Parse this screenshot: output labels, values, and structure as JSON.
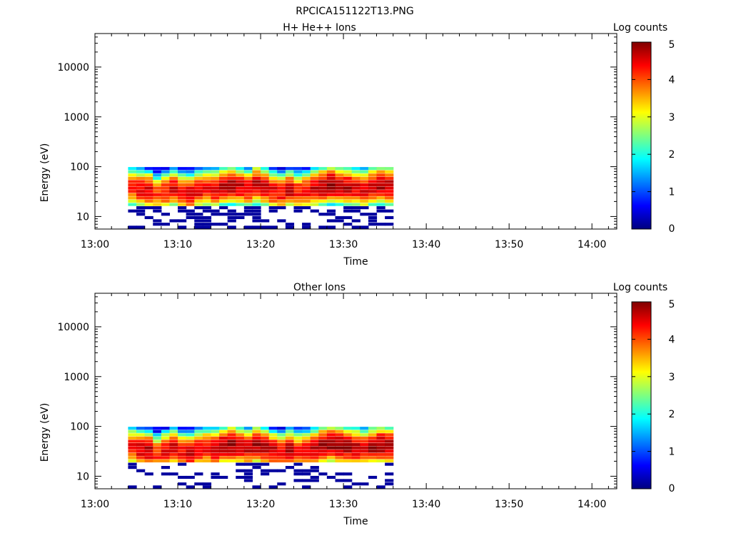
{
  "figure_title": "RPCICA151122T13.PNG",
  "colors": {
    "colormap": [
      "#00007f",
      "#0000ff",
      "#007fff",
      "#00ffff",
      "#7fff7f",
      "#ffff00",
      "#ff7f00",
      "#ff0000",
      "#7f0000"
    ]
  },
  "chart_data": [
    {
      "type": "heatmap",
      "title": "H+ He++ Ions",
      "xlabel": "Time",
      "ylabel": "Energy (eV)",
      "x_range": [
        "13:00",
        "14:03"
      ],
      "x_ticks": [
        "13:00",
        "13:10",
        "13:20",
        "13:30",
        "13:40",
        "13:50",
        "14:00"
      ],
      "y_scale": "log",
      "y_range": [
        5.6,
        47000
      ],
      "y_ticks": [
        "10",
        "100",
        "1000",
        "10000"
      ],
      "colorbar": {
        "label": "Log counts",
        "range": [
          0,
          5
        ],
        "ticks": [
          "0",
          "1",
          "2",
          "3",
          "4",
          "5"
        ]
      },
      "data_time_range": [
        "13:04",
        "13:36"
      ],
      "time_bins": 32,
      "energy_bins": [
        6.1,
        7.0,
        8.2,
        9.5,
        11.1,
        12.9,
        15.0,
        17.4,
        20.3,
        23.6,
        27.4,
        31.9,
        37.1,
        43.1,
        50.2,
        58.4,
        67.9,
        79.0,
        91.8
      ],
      "peak_log_counts_by_time": [
        4.3,
        4.5,
        4.6,
        4.1,
        4.4,
        4.5,
        4.3,
        4.6,
        4.5,
        4.4,
        4.6,
        4.7,
        4.8,
        4.6,
        4.5,
        4.7,
        4.6,
        4.5,
        4.4,
        4.6,
        4.3,
        4.4,
        4.6,
        4.8,
        4.9,
        4.8,
        4.7,
        4.6,
        4.5,
        4.7,
        4.8,
        4.7
      ],
      "peak_energy_ev_by_time": [
        38,
        35,
        33,
        28,
        32,
        36,
        31,
        29,
        34,
        37,
        35,
        40,
        42,
        39,
        36,
        43,
        38,
        33,
        30,
        34,
        31,
        33,
        36,
        40,
        44,
        41,
        39,
        37,
        35,
        39,
        42,
        40
      ]
    },
    {
      "type": "heatmap",
      "title": "Other Ions",
      "xlabel": "Time",
      "ylabel": "Energy (eV)",
      "x_range": [
        "13:00",
        "14:03"
      ],
      "x_ticks": [
        "13:00",
        "13:10",
        "13:20",
        "13:30",
        "13:40",
        "13:50",
        "14:00"
      ],
      "y_scale": "log",
      "y_range": [
        5.6,
        47000
      ],
      "y_ticks": [
        "10",
        "100",
        "1000",
        "10000"
      ],
      "colorbar": {
        "label": "Log counts",
        "range": [
          0,
          5
        ],
        "ticks": [
          "0",
          "1",
          "2",
          "3",
          "4",
          "5"
        ]
      },
      "data_time_range": [
        "13:04",
        "13:36"
      ],
      "time_bins": 32,
      "energy_bins": [
        6.1,
        7.0,
        8.2,
        9.5,
        11.1,
        12.9,
        15.0,
        17.4,
        20.3,
        23.6,
        27.4,
        31.9,
        37.1,
        43.1,
        50.2,
        58.4,
        67.9,
        79.0,
        91.8
      ],
      "peak_log_counts_by_time": [
        4.4,
        4.6,
        4.7,
        4.2,
        4.5,
        4.6,
        4.4,
        4.7,
        4.6,
        4.5,
        4.7,
        4.8,
        4.9,
        4.7,
        4.6,
        4.8,
        4.7,
        4.6,
        4.5,
        4.7,
        4.4,
        4.5,
        4.7,
        4.9,
        4.95,
        4.9,
        4.8,
        4.7,
        4.6,
        4.8,
        4.9,
        4.8
      ],
      "peak_energy_ev_by_time": [
        38,
        35,
        33,
        28,
        32,
        36,
        31,
        29,
        34,
        37,
        35,
        40,
        42,
        39,
        36,
        43,
        38,
        33,
        30,
        34,
        31,
        33,
        36,
        40,
        44,
        41,
        39,
        37,
        35,
        39,
        42,
        40
      ]
    }
  ]
}
